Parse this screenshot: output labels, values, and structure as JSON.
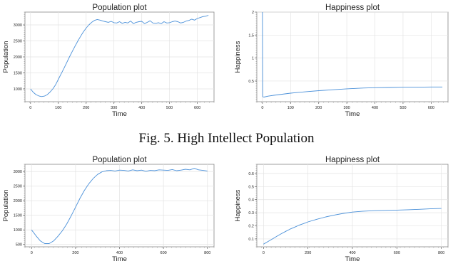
{
  "caption": "Fig. 5.  High Intellect Population",
  "chart_data": [
    {
      "type": "line",
      "title": "Population plot",
      "xlabel": "Time",
      "ylabel": "Population",
      "xlim": [
        -20,
        660
      ],
      "ylim": [
        600,
        3400
      ],
      "xticks": [
        "0",
        "100",
        "200",
        "300",
        "400",
        "500",
        "600"
      ],
      "xtick_values": [
        0,
        100,
        200,
        300,
        400,
        500,
        600
      ],
      "yticks": [
        "1000",
        "1500",
        "2000",
        "2500",
        "3000"
      ],
      "ytick_values": [
        1000,
        1500,
        2000,
        2500,
        3000
      ],
      "grid": true,
      "color": "#4a90d9",
      "series": [
        {
          "x": [
            0,
            10,
            20,
            30,
            40,
            50,
            60,
            70,
            80,
            90,
            100,
            110,
            120,
            130,
            140,
            150,
            160,
            170,
            180,
            190,
            200,
            210,
            220,
            230,
            240,
            250,
            260,
            270,
            280,
            290,
            300,
            310,
            320,
            330,
            340,
            350,
            360,
            370,
            380,
            390,
            400,
            410,
            420,
            430,
            440,
            450,
            460,
            470,
            480,
            490,
            500,
            510,
            520,
            530,
            540,
            550,
            560,
            570,
            580,
            590,
            600,
            610,
            620,
            630,
            640
          ],
          "y": [
            1000,
            890,
            820,
            780,
            760,
            775,
            820,
            900,
            1000,
            1130,
            1300,
            1470,
            1640,
            1820,
            2000,
            2170,
            2330,
            2490,
            2640,
            2780,
            2900,
            3000,
            3080,
            3140,
            3170,
            3150,
            3120,
            3100,
            3080,
            3110,
            3070,
            3060,
            3100,
            3050,
            3080,
            3060,
            3120,
            3040,
            3080,
            3100,
            3110,
            3040,
            3080,
            3130,
            3060,
            3050,
            3070,
            3040,
            3100,
            3060,
            3070,
            3100,
            3120,
            3100,
            3060,
            3080,
            3120,
            3140,
            3180,
            3150,
            3200,
            3230,
            3260,
            3270,
            3300
          ]
        }
      ]
    },
    {
      "type": "line",
      "title": "Happiness plot",
      "xlabel": "Time",
      "ylabel": "Happiness",
      "xlim": [
        -20,
        660
      ],
      "ylim": [
        0.05,
        2.0
      ],
      "xticks": [
        "0",
        "100",
        "200",
        "300",
        "400",
        "500",
        "600"
      ],
      "xtick_values": [
        0,
        100,
        200,
        300,
        400,
        500,
        600
      ],
      "yticks": [
        "0.5",
        "1",
        "1.5",
        "2"
      ],
      "ytick_values": [
        0.5,
        1,
        1.5,
        2
      ],
      "grid": true,
      "color": "#4a90d9",
      "series": [
        {
          "x": [
            0,
            1,
            5,
            20,
            40,
            60,
            80,
            100,
            130,
            160,
            200,
            250,
            300,
            350,
            400,
            450,
            500,
            550,
            600,
            640
          ],
          "y": [
            2.0,
            0.16,
            0.15,
            0.17,
            0.19,
            0.205,
            0.22,
            0.235,
            0.255,
            0.27,
            0.29,
            0.31,
            0.33,
            0.345,
            0.355,
            0.36,
            0.365,
            0.365,
            0.37,
            0.37
          ]
        }
      ]
    },
    {
      "type": "line",
      "title": "Population plot",
      "xlabel": "Time",
      "ylabel": "Population",
      "xlim": [
        -30,
        830
      ],
      "ylim": [
        420,
        3250
      ],
      "xticks": [
        "0",
        "200",
        "400",
        "600",
        "800"
      ],
      "xtick_values": [
        0,
        200,
        400,
        600,
        800
      ],
      "yticks": [
        "500",
        "1000",
        "1500",
        "2000",
        "2500",
        "3000"
      ],
      "ytick_values": [
        500,
        1000,
        1500,
        2000,
        2500,
        3000
      ],
      "grid": true,
      "color": "#4a90d9",
      "series": [
        {
          "x": [
            0,
            20,
            40,
            60,
            80,
            100,
            120,
            140,
            160,
            180,
            200,
            220,
            240,
            260,
            280,
            300,
            320,
            340,
            360,
            380,
            400,
            420,
            440,
            460,
            480,
            500,
            520,
            540,
            560,
            580,
            600,
            620,
            640,
            660,
            680,
            700,
            720,
            740,
            760,
            780,
            800
          ],
          "y": [
            1000,
            800,
            620,
            530,
            530,
            620,
            780,
            970,
            1200,
            1480,
            1780,
            2080,
            2350,
            2580,
            2760,
            2900,
            2990,
            3030,
            3040,
            3020,
            3050,
            3040,
            3020,
            3060,
            3030,
            3050,
            3010,
            3040,
            3030,
            3060,
            3050,
            3040,
            3070,
            3030,
            3050,
            3080,
            3060,
            3110,
            3060,
            3040,
            3020
          ]
        }
      ]
    },
    {
      "type": "line",
      "title": "Happiness plot",
      "xlabel": "Time",
      "ylabel": "Happiness",
      "xlim": [
        -30,
        830
      ],
      "ylim": [
        0.04,
        0.67
      ],
      "xticks": [
        "0",
        "200",
        "400",
        "600",
        "800"
      ],
      "xtick_values": [
        0,
        200,
        400,
        600,
        800
      ],
      "yticks": [
        "0.1",
        "0.2",
        "0.3",
        "0.4",
        "0.5",
        "0.6"
      ],
      "ytick_values": [
        0.1,
        0.2,
        0.3,
        0.4,
        0.5,
        0.6
      ],
      "grid": true,
      "color": "#4a90d9",
      "series": [
        {
          "x": [
            0,
            20,
            40,
            60,
            80,
            100,
            120,
            140,
            160,
            180,
            200,
            240,
            280,
            320,
            360,
            400,
            450,
            500,
            550,
            600,
            650,
            700,
            750,
            800
          ],
          "y": [
            0.06,
            0.08,
            0.1,
            0.12,
            0.14,
            0.158,
            0.175,
            0.19,
            0.205,
            0.217,
            0.23,
            0.25,
            0.268,
            0.283,
            0.295,
            0.305,
            0.312,
            0.316,
            0.318,
            0.32,
            0.323,
            0.326,
            0.33,
            0.333
          ]
        }
      ]
    }
  ]
}
